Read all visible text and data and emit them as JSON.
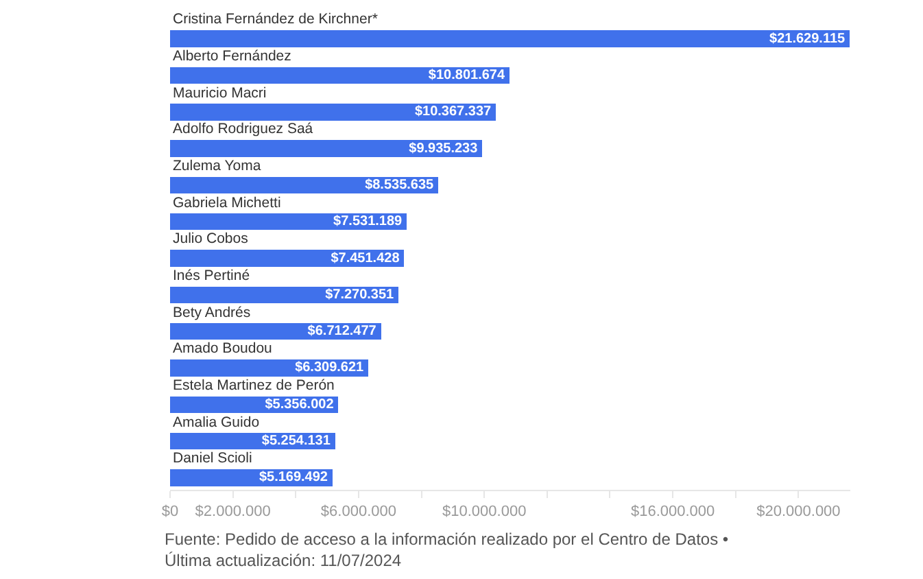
{
  "chart_data": {
    "type": "bar",
    "orientation": "horizontal",
    "categories": [
      "Cristina Fernández de Kirchner*",
      "Alberto Fernández",
      "Mauricio Macri",
      "Adolfo Rodriguez Saá",
      "Zulema Yoma",
      "Gabriela Michetti",
      "Julio Cobos",
      "Inés Pertiné",
      "Bety Andrés",
      "Amado Boudou",
      "Estela Martinez de Perón",
      "Amalia Guido",
      "Daniel Scioli"
    ],
    "values": [
      21629115,
      10801674,
      10367337,
      9935233,
      8535635,
      7531189,
      7451428,
      7270351,
      6712477,
      6309621,
      5356002,
      5254131,
      5169492
    ],
    "value_labels": [
      "$21.629.115",
      "$10.801.674",
      "$10.367.337",
      "$9.935.233",
      "$8.535.635",
      "$7.531.189",
      "$7.451.428",
      "$7.270.351",
      "$6.712.477",
      "$6.309.621",
      "$5.356.002",
      "$5.254.131",
      "$5.169.492"
    ],
    "color": "#4071eb",
    "xlim": [
      0,
      21650000
    ],
    "xticks": [
      {
        "value": 0,
        "label": "$0"
      },
      {
        "value": 2000000,
        "label": "$2.000.000"
      },
      {
        "value": 4000000,
        "label": null
      },
      {
        "value": 6000000,
        "label": "$6.000.000"
      },
      {
        "value": 8000000,
        "label": null
      },
      {
        "value": 10000000,
        "label": "$10.000.000"
      },
      {
        "value": 12000000,
        "label": null
      },
      {
        "value": 14000000,
        "label": null
      },
      {
        "value": 16000000,
        "label": "$16.000.000"
      },
      {
        "value": 18000000,
        "label": null
      },
      {
        "value": 20000000,
        "label": "$20.000.000"
      }
    ],
    "grid": false,
    "annotations": [
      "Fuente: Pedido de acceso a la información realizado por el Centro de Datos • Última actualización: 11/07/2024"
    ]
  }
}
